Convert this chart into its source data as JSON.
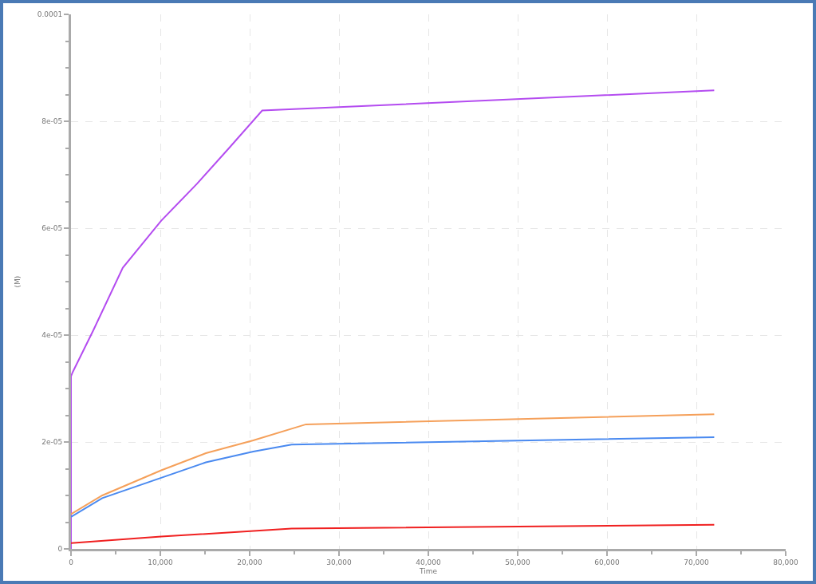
{
  "chart_data": {
    "type": "line",
    "xlabel": "Time",
    "ylabel": "(M)",
    "xlim": [
      0,
      80000
    ],
    "ylim": [
      0,
      0.0001
    ],
    "xticks": [
      0,
      {
        "value": 10000,
        "label": "10,000"
      },
      {
        "value": 20000,
        "label": "20,000"
      },
      {
        "value": 30000,
        "label": "30,000"
      },
      {
        "value": 40000,
        "label": "40,000"
      },
      {
        "value": 50000,
        "label": "50,000"
      },
      {
        "value": 60000,
        "label": "60,000"
      },
      {
        "value": 70000,
        "label": "70,000"
      },
      {
        "value": 80000,
        "label": "80,000"
      }
    ],
    "yticks": [
      0,
      {
        "value": 2e-05,
        "label": "2e-05"
      },
      {
        "value": 4e-05,
        "label": "4e-05"
      },
      {
        "value": 6e-05,
        "label": "6e-05"
      },
      {
        "value": 8e-05,
        "label": "8e-05"
      },
      0.0001
    ],
    "grid": true,
    "marker": "none",
    "line_style": "solid",
    "series": [
      {
        "color": "#b44cf0",
        "x": [
          0,
          0,
          200,
          2500,
          5800,
          10100,
          14100,
          17700,
          21400,
          72000
        ],
        "values": [
          0,
          3.23e-05,
          3.31e-05,
          4.09e-05,
          5.26e-05,
          6.14e-05,
          6.83e-05,
          7.5e-05,
          8.2e-05,
          8.58e-05
        ]
      },
      {
        "color": "#f5a05a",
        "x": [
          0,
          3500,
          10100,
          15100,
          20400,
          26300,
          72000
        ],
        "values": [
          6.5e-06,
          1e-05,
          1.47e-05,
          1.79e-05,
          2.03e-05,
          2.33e-05,
          2.52e-05
        ]
      },
      {
        "color": "#4a8af0",
        "x": [
          0,
          3500,
          10100,
          15100,
          20400,
          24700,
          72000
        ],
        "values": [
          6e-06,
          9.5e-06,
          1.33e-05,
          1.62e-05,
          1.82e-05,
          1.95e-05,
          2.09e-05
        ]
      },
      {
        "color": "#f02020",
        "x": [
          0,
          10100,
          24700,
          72000
        ],
        "values": [
          1.1e-06,
          2.3e-06,
          3.8e-06,
          4.5e-06
        ]
      }
    ]
  }
}
